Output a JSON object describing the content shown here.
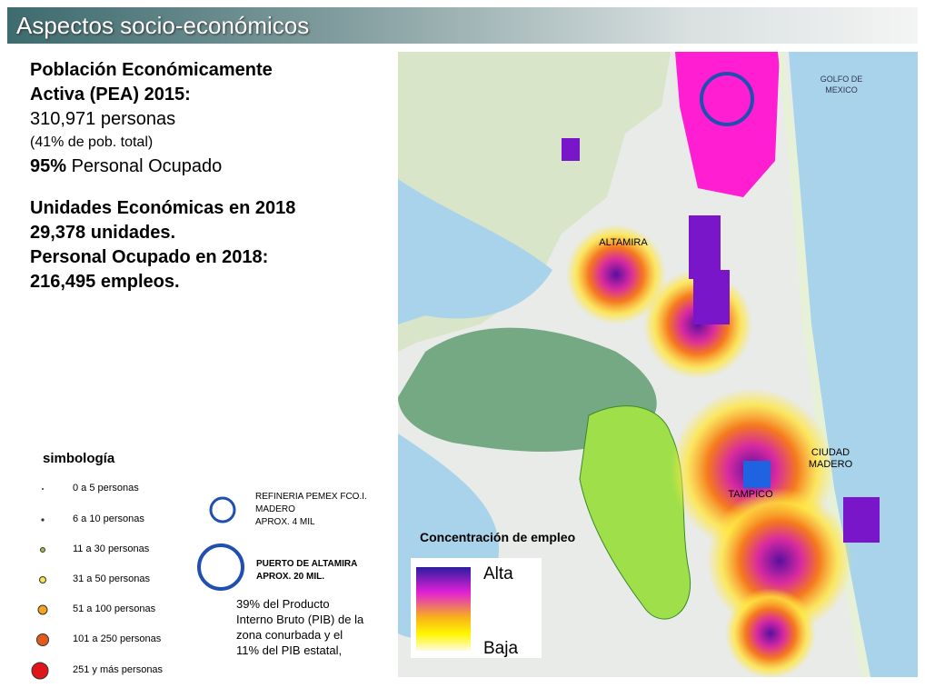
{
  "header": {
    "title": "Aspectos socio-económicos"
  },
  "stats": {
    "pea_title_1": "Población Económicamente",
    "pea_title_2": "Activa (PEA) 2015:",
    "pea_value": "310,971 personas",
    "pea_share": "(41% de pob. total)",
    "occupied_bold": "95%",
    "occupied_text": "Personal Ocupado",
    "units_title": "Unidades Económicas en 2018",
    "units_value": "29,378 unidades.",
    "staff_title": "Personal Ocupado en 2018:",
    "staff_value": "216,495 empleos."
  },
  "legend": {
    "title": "simbología",
    "items": [
      "0 a 5 personas",
      "6 a 10 personas",
      "11 a 30 personas",
      "31 a 50 personas",
      "51 a 100 personas",
      "101 a 250 personas",
      "251 y más personas"
    ],
    "refinery": [
      "REFINERIA PEMEX FCO.I.",
      "MADERO",
      "APROX. 4 MIL"
    ],
    "port": [
      "PUERTO DE ALTAMIRA",
      "APROX. 20 MIL."
    ],
    "pib_note": [
      "39% del Producto",
      "Interno Bruto (PIB) de la",
      "zona conurbada y el",
      "11% del PIB estatal,"
    ]
  },
  "map": {
    "gulf": [
      "GOLFO DE",
      "MEXICO"
    ],
    "altamira": "ALTAMIRA",
    "madero": [
      "CIUDAD",
      "MADERO"
    ],
    "tampico": "TAMPICO",
    "concentration_title": "Concentración de empleo",
    "scale_high": "Alta",
    "scale_low": "Baja"
  }
}
